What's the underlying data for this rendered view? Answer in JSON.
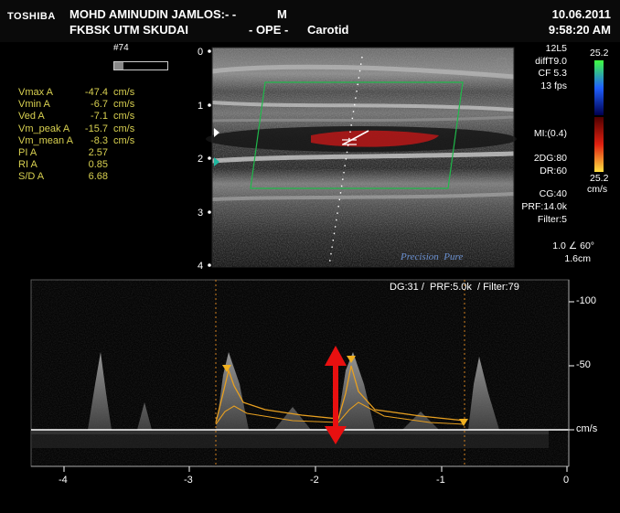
{
  "header": {
    "brand": "TOSHIBA",
    "patient_name": "MOHD AMINUDIN JAMLOS:- -",
    "sex": "M",
    "institution": "FKBSK UTM SKUDAI",
    "operator": "- OPE -",
    "exam": "Carotid",
    "date": "10.06.2011",
    "time": "9:58:20 AM"
  },
  "frame_number": "#74",
  "measurements": [
    {
      "label": "Vmax A",
      "value": "-47.4",
      "unit": "cm/s"
    },
    {
      "label": "Vmin A",
      "value": "-6.7",
      "unit": "cm/s"
    },
    {
      "label": "Ved A",
      "value": "-7.1",
      "unit": "cm/s"
    },
    {
      "label": "Vm_peak A",
      "value": "-15.7",
      "unit": "cm/s"
    },
    {
      "label": "Vm_mean A",
      "value": "-8.3",
      "unit": "cm/s"
    },
    {
      "label": "PI A",
      "value": "2.57",
      "unit": ""
    },
    {
      "label": "RI A",
      "value": "0.85",
      "unit": ""
    },
    {
      "label": "S/D A",
      "value": "6.68",
      "unit": ""
    }
  ],
  "depth_scale": [
    "0",
    "1",
    "2",
    "3",
    "4"
  ],
  "imaging_params": {
    "probe": "12L5",
    "diff": "diffT9.0",
    "cf": "CF 5.3",
    "fps": "13 fps",
    "mi": "MI:(0.4)",
    "dg_2d": "2DG:80",
    "dr": "DR:60",
    "cg": "CG:40",
    "prf": "PRF:14.0k",
    "filter": "Filter:5",
    "angle": "1.0 ∠ 60°",
    "gate": "1.6cm"
  },
  "color_bar": {
    "top": "25.2",
    "bottom": "25.2",
    "unit": "cm/s"
  },
  "watermark": {
    "part1": "Precision",
    "part2": "Pure"
  },
  "doppler": {
    "params": "DG:31 /  PRF:5.0k  / Filter:79",
    "y_labels": [
      "-100",
      "-50",
      "cm/s"
    ],
    "x_labels": [
      "-4",
      "-3",
      "-2",
      "-1",
      "0"
    ]
  },
  "colors": {
    "text_yellow": "#d8d050",
    "roi_green": "#1fb84a",
    "flow_red": "#c01818",
    "arrow_red": "#e81010",
    "trace_yellow": "#e8a020"
  }
}
